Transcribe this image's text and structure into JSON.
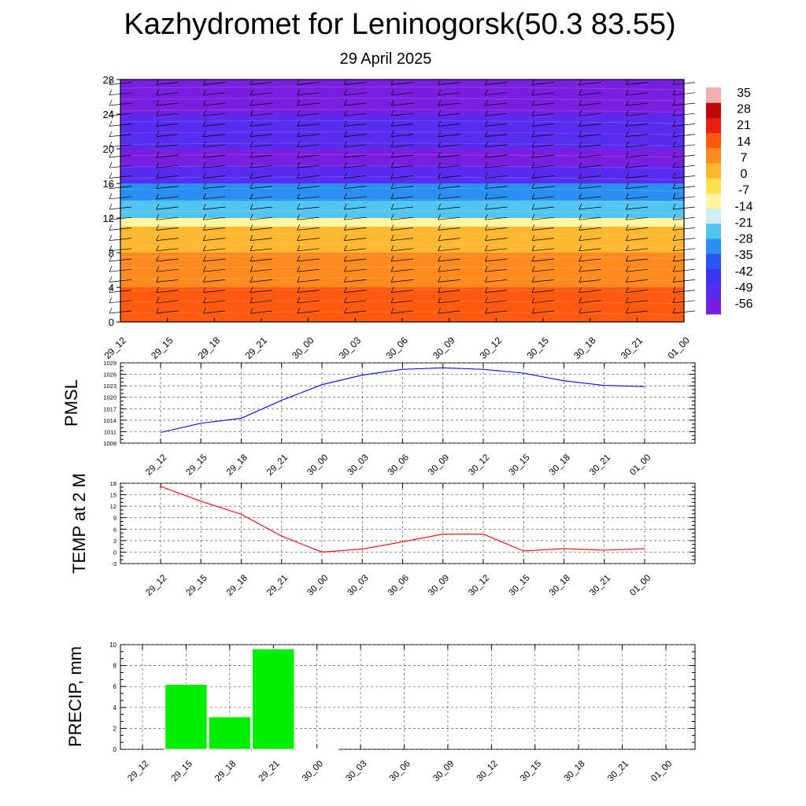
{
  "title": "Kazhydromet for Leninogorsk(50.3 83.55)",
  "subtitle": "29 April 2025",
  "colors": {
    "pmsl_line": "#0000ff",
    "temp_line": "#ff0000",
    "precip_bar": "#00ee00",
    "colorbar": [
      "#7a1fe0",
      "#5a2cf0",
      "#3a33f0",
      "#2a55f5",
      "#2a8ff0",
      "#52c4f0",
      "#d0ecf5",
      "#fff5a0",
      "#ffe050",
      "#ffb830",
      "#ff8a20",
      "#ff5a10",
      "#e82010",
      "#c00808",
      "#f4b0b0"
    ]
  },
  "chart_data": [
    {
      "type": "heatmap",
      "name": "cross-section",
      "x": [
        "29_12",
        "29_15",
        "29_18",
        "29_21",
        "30_00",
        "30_03",
        "30_06",
        "30_09",
        "30_12",
        "30_15",
        "30_18",
        "30_21",
        "01_00"
      ],
      "y_ticks": [
        0,
        4,
        8,
        12,
        16,
        20,
        24,
        28
      ],
      "ylim": [
        0,
        28
      ],
      "colorbar_labels": [
        "35",
        "28",
        "21",
        "14",
        "7",
        "0",
        "-7",
        "-14",
        "-21",
        "-28",
        "-35",
        "-42",
        "-49",
        "-56"
      ],
      "colorbar_range": [
        -63,
        42
      ],
      "bands": [
        {
          "y0": 0,
          "y1": 4,
          "value": 14
        },
        {
          "y0": 4,
          "y1": 8,
          "value": 7
        },
        {
          "y0": 8,
          "y1": 11,
          "value": 0
        },
        {
          "y0": 11,
          "y1": 12,
          "value": -10
        },
        {
          "y0": 12,
          "y1": 14,
          "value": -22
        },
        {
          "y0": 14,
          "y1": 16,
          "value": -35
        },
        {
          "y0": 16,
          "y1": 18,
          "value": -50
        },
        {
          "y0": 18,
          "y1": 20,
          "value": -57
        },
        {
          "y0": 20,
          "y1": 24,
          "value": -55
        },
        {
          "y0": 24,
          "y1": 28,
          "value": -60
        }
      ]
    },
    {
      "type": "line",
      "name": "pmsl",
      "ylabel": "PMSL",
      "x": [
        "29_12",
        "29_15",
        "29_18",
        "29_21",
        "30_00",
        "30_03",
        "30_06",
        "30_09",
        "30_12",
        "30_15",
        "30_18",
        "30_21",
        "01_00"
      ],
      "values": [
        1010.8,
        1013.2,
        1014.5,
        1019.2,
        1023.3,
        1025.8,
        1027.3,
        1027.7,
        1027.3,
        1026.3,
        1024.3,
        1023.1,
        1022.8
      ],
      "y_ticks": [
        1008,
        1011,
        1014,
        1017,
        1020,
        1023,
        1026,
        1029
      ],
      "ylim": [
        1008,
        1029
      ],
      "grid": true
    },
    {
      "type": "line",
      "name": "temp",
      "ylabel": "TEMP at 2 M",
      "x": [
        "29_12",
        "29_15",
        "29_18",
        "29_21",
        "30_00",
        "30_03",
        "30_06",
        "30_09",
        "30_12",
        "30_15",
        "30_18",
        "30_21",
        "01_00"
      ],
      "values": [
        17.2,
        13.3,
        9.9,
        4.2,
        0.0,
        0.8,
        2.7,
        4.7,
        4.7,
        0.3,
        0.9,
        0.5,
        0.9
      ],
      "y_ticks": [
        -3,
        0,
        3,
        6,
        9,
        12,
        15,
        18
      ],
      "ylim": [
        -3,
        18
      ],
      "grid": true
    },
    {
      "type": "bar",
      "name": "precip",
      "ylabel": "PRECIP, mm",
      "x": [
        "29_12",
        "29_15",
        "29_18",
        "29_21",
        "30_00",
        "30_03",
        "30_06",
        "30_09",
        "30_12",
        "30_15",
        "30_18",
        "30_21",
        "01_00"
      ],
      "values": [
        0,
        6.2,
        3.1,
        9.6,
        0.05,
        0,
        0,
        0,
        0,
        0,
        0,
        0,
        0
      ],
      "y_ticks": [
        0,
        2,
        4,
        6,
        8,
        10
      ],
      "ylim": [
        0,
        10
      ],
      "grid": true
    }
  ]
}
